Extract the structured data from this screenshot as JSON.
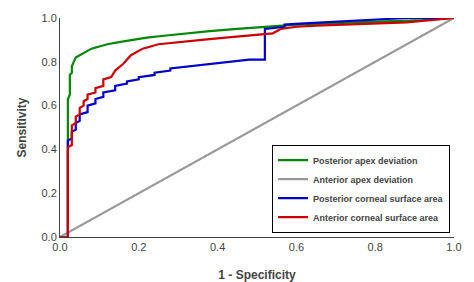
{
  "chart_data": {
    "type": "line",
    "xlabel": "1 - Specificity",
    "ylabel": "Sensitivity",
    "xlim": [
      0.0,
      1.0
    ],
    "ylim": [
      0.0,
      1.0
    ],
    "xticks": [
      {
        "value": 0.0,
        "label": "0.0"
      },
      0.2,
      0.4,
      0.6,
      0.8,
      {
        "value": 1.0,
        "label": "1.0"
      }
    ],
    "yticks": [
      {
        "value": 0.0,
        "label": "0.0"
      },
      0.2,
      0.4,
      0.6,
      0.8,
      {
        "value": 1.0,
        "label": "1.0"
      }
    ],
    "grid": false,
    "legend": "lower right",
    "series": [
      {
        "name": "Posterior apex deviation",
        "color": "#008800",
        "x": [
          0.0,
          0.02,
          0.02,
          0.025,
          0.025,
          0.03,
          0.03,
          0.035,
          0.04,
          0.05,
          0.06,
          0.07,
          0.08,
          0.1,
          0.12,
          0.15,
          0.18,
          0.22,
          0.27,
          0.32,
          0.38,
          0.45,
          0.52,
          0.6,
          0.68,
          0.76,
          0.84,
          0.92,
          1.0
        ],
        "values": [
          0.0,
          0.0,
          0.63,
          0.65,
          0.74,
          0.75,
          0.78,
          0.8,
          0.82,
          0.83,
          0.84,
          0.85,
          0.86,
          0.87,
          0.88,
          0.89,
          0.9,
          0.91,
          0.92,
          0.93,
          0.94,
          0.95,
          0.96,
          0.97,
          0.975,
          0.98,
          0.985,
          0.99,
          1.0
        ]
      },
      {
        "name": "Anterior apex deviation",
        "color": "#999999",
        "x": [
          0.0,
          1.0
        ],
        "values": [
          0.0,
          1.0
        ]
      },
      {
        "name": "Posterior corneal surface area",
        "color": "#0000cc",
        "x": [
          0.0,
          0.02,
          0.02,
          0.03,
          0.03,
          0.04,
          0.04,
          0.05,
          0.05,
          0.07,
          0.07,
          0.09,
          0.09,
          0.11,
          0.11,
          0.14,
          0.14,
          0.17,
          0.17,
          0.2,
          0.2,
          0.24,
          0.24,
          0.28,
          0.28,
          0.33,
          0.38,
          0.43,
          0.48,
          0.52,
          0.52,
          0.57,
          0.57,
          0.62,
          0.67,
          0.73,
          0.8,
          0.88,
          1.0
        ],
        "values": [
          0.0,
          0.0,
          0.44,
          0.45,
          0.48,
          0.49,
          0.52,
          0.53,
          0.56,
          0.57,
          0.6,
          0.61,
          0.63,
          0.64,
          0.66,
          0.67,
          0.69,
          0.7,
          0.71,
          0.72,
          0.73,
          0.74,
          0.75,
          0.76,
          0.77,
          0.78,
          0.79,
          0.8,
          0.81,
          0.81,
          0.95,
          0.96,
          0.97,
          0.975,
          0.98,
          0.985,
          0.99,
          1.0,
          1.0
        ]
      },
      {
        "name": "Anterior corneal surface area",
        "color": "#cc0000",
        "x": [
          0.0,
          0.02,
          0.02,
          0.03,
          0.03,
          0.04,
          0.04,
          0.05,
          0.05,
          0.06,
          0.06,
          0.07,
          0.07,
          0.09,
          0.09,
          0.11,
          0.11,
          0.13,
          0.14,
          0.16,
          0.18,
          0.21,
          0.25,
          0.3,
          0.36,
          0.42,
          0.48,
          0.54,
          0.56,
          0.6,
          0.65,
          0.72,
          0.8,
          0.88,
          1.0
        ],
        "values": [
          0.0,
          0.0,
          0.41,
          0.42,
          0.51,
          0.52,
          0.55,
          0.56,
          0.59,
          0.6,
          0.62,
          0.63,
          0.65,
          0.66,
          0.68,
          0.69,
          0.72,
          0.73,
          0.76,
          0.79,
          0.83,
          0.86,
          0.88,
          0.89,
          0.9,
          0.91,
          0.92,
          0.93,
          0.95,
          0.96,
          0.965,
          0.97,
          0.975,
          0.98,
          1.0
        ]
      }
    ]
  }
}
